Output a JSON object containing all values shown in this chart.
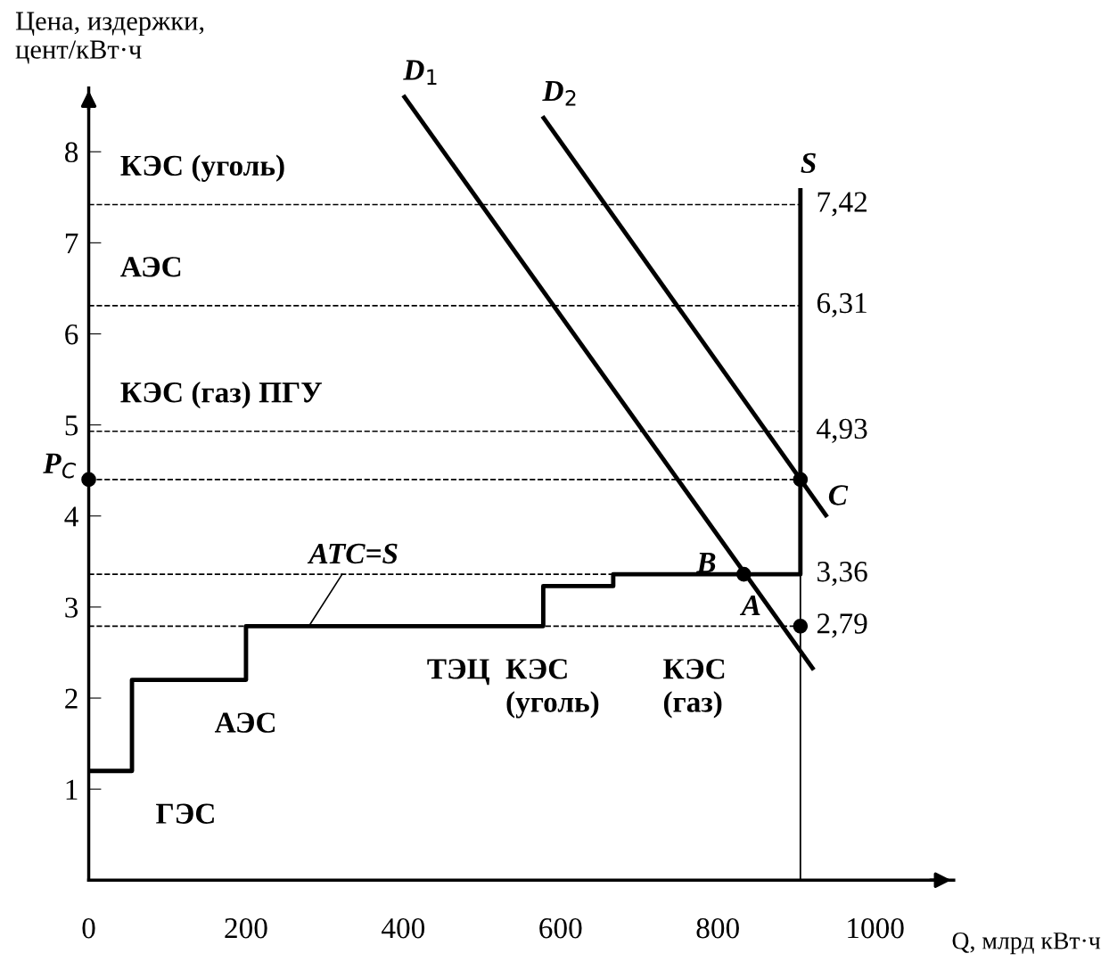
{
  "chart_data": {
    "type": "line",
    "ylabel": "Цена, издержки,\nцент/кВт·ч",
    "xlabel": "Q, млрд кВт·ч",
    "xlim": [
      0,
      1100
    ],
    "ylim": [
      0,
      8.7
    ],
    "xticks": [
      0,
      200,
      400,
      600,
      800,
      1000
    ],
    "yticks": [
      1,
      2,
      3,
      4,
      5,
      6,
      7,
      8
    ],
    "grid": false,
    "legend": false,
    "line_style": "solid",
    "marker": "none",
    "series": [
      {
        "name": "S",
        "color": "#000000",
        "x": [
          0,
          55,
          55,
          200,
          200,
          578,
          578,
          667,
          667,
          905,
          905
        ],
        "values": [
          1.2,
          1.2,
          2.2,
          2.2,
          2.79,
          2.79,
          3.23,
          3.23,
          3.36,
          3.36,
          7.6
        ]
      },
      {
        "color": "#000000",
        "x": [
          905,
          905
        ],
        "values": [
          0,
          3.36
        ]
      },
      {
        "name": "D$_{1}$",
        "color": "#000000",
        "x": [
          400,
          922
        ],
        "values": [
          8.62,
          2.31
        ]
      },
      {
        "name": "D$_{2}$",
        "color": "#000000",
        "x": [
          577,
          939
        ],
        "values": [
          8.39,
          3.99
        ]
      },
      {
        "type": "scatter",
        "marker": "circle",
        "color": "#000000",
        "x": [
          0,
          905,
          833,
          905
        ],
        "values": [
          4.4,
          4.4,
          3.36,
          2.79
        ]
      }
    ],
    "ref_lines": [
      {
        "axis": "y",
        "value": 7.42,
        "label": "7,42",
        "line_style": "dashed",
        "color": "#000000"
      },
      {
        "axis": "y",
        "value": 6.31,
        "label": "6,31",
        "line_style": "dashed",
        "color": "#000000"
      },
      {
        "axis": "y",
        "value": 4.93,
        "label": "4,93",
        "line_style": "dashed",
        "color": "#000000"
      },
      {
        "axis": "y",
        "value": 4.4,
        "label": null,
        "line_style": "dashed",
        "color": "#000000"
      },
      {
        "axis": "y",
        "value": 3.36,
        "label": "3,36",
        "line_style": "dashed",
        "color": "#000000"
      },
      {
        "axis": "y",
        "value": 2.79,
        "label": "2,79",
        "line_style": "dashed",
        "color": "#000000"
      }
    ],
    "annotations": [
      {
        "text": "КЭС (уголь)",
        "x": 40,
        "y": 7.42
      },
      {
        "text": "АЭС",
        "x": 40,
        "y": 6.31
      },
      {
        "text": "КЭС (газ) ПГУ",
        "x": 40,
        "y": 4.93
      },
      {
        "text": "P$_{C}$",
        "x": 0,
        "y": 4.4
      },
      {
        "text": "C",
        "x": 905,
        "y": 4.4
      },
      {
        "text": "B",
        "x": 833,
        "y": 3.36
      },
      {
        "text": "A",
        "x": 905,
        "y": 2.79
      },
      {
        "text": "ATC=S",
        "x": 280,
        "y": 2.79
      },
      {
        "text": "ГЭС",
        "x": 55,
        "y": 1.2
      },
      {
        "text": "АЭС",
        "x": 130,
        "y": 2.2
      },
      {
        "text": "ТЭЦ",
        "x": 400,
        "y": 2.79
      },
      {
        "text": "КЭС\n(уголь)",
        "x": 500,
        "y": 2.79
      },
      {
        "text": "КЭС\n(газ)",
        "x": 700,
        "y": 2.79
      }
    ]
  }
}
